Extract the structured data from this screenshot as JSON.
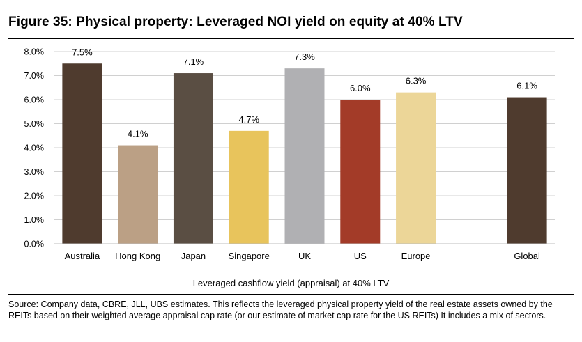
{
  "title": "Figure 35: Physical property: Leveraged NOI yield on equity at 40% LTV",
  "caption": "Leveraged cashflow yield (appraisal) at 40% LTV",
  "source": "Source: Company data, CBRE, JLL, UBS estimates. This reflects the leveraged physical property yield of the real estate assets owned by the REITs based on their weighted average appraisal cap rate (or our estimate of market cap rate for the US REITs) It includes a mix of sectors.",
  "chart_data": {
    "type": "bar",
    "categories": [
      "Australia",
      "Hong Kong",
      "Japan",
      "Singapore",
      "UK",
      "US",
      "Europe",
      "",
      "Global"
    ],
    "values": [
      7.5,
      4.1,
      7.1,
      4.7,
      7.3,
      6.0,
      6.3,
      null,
      6.1
    ],
    "data_labels": [
      "7.5%",
      "4.1%",
      "7.1%",
      "4.7%",
      "7.3%",
      "6.0%",
      "6.3%",
      "",
      "6.1%"
    ],
    "colors": [
      "#4f3b2e",
      "#bba085",
      "#5a4e43",
      "#e8c45c",
      "#b0b0b3",
      "#a33b28",
      "#ecd698",
      "",
      "#4f3b2e"
    ],
    "ylim": [
      0,
      8
    ],
    "yticks": [
      "0.0%",
      "1.0%",
      "2.0%",
      "3.0%",
      "4.0%",
      "5.0%",
      "6.0%",
      "7.0%",
      "8.0%"
    ],
    "xlabel": "Leveraged cashflow yield (appraisal) at 40% LTV",
    "ylabel": "",
    "grid": true
  }
}
